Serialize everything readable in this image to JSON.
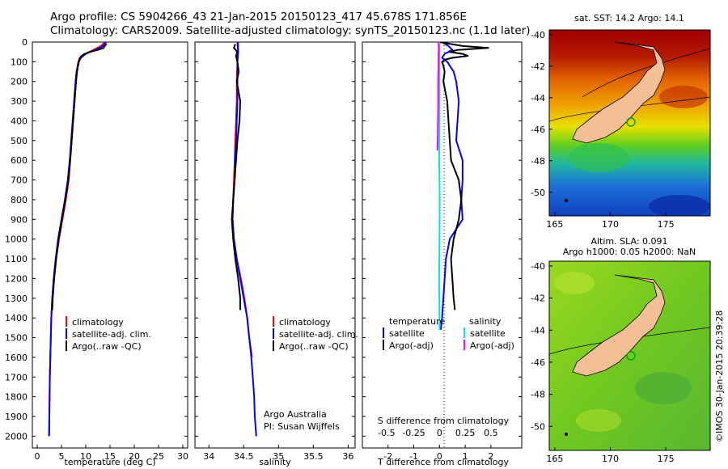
{
  "header": {
    "line1": "Argo profile: CS 5904266_43 21-Jan-2015 20150123_417 45.678S 171.856E",
    "line2": "Climatology: CARS2009. Satellite-adjusted climatology: synTS_20150123.nc (1.1d later)"
  },
  "colors": {
    "climatology": "#ff0000",
    "satellite": "#0000ff",
    "argo": "#000000",
    "sat_salinity": "#00e5ee",
    "argo_salinity": "#ff00ff",
    "land": "#f4be96",
    "frame": "#000000"
  },
  "chart_data": [
    {
      "type": "line",
      "name": "temperature-profile",
      "xlabel": "temperature (deg C)",
      "ylabel": "",
      "xlim": [
        -1,
        31
      ],
      "ylim": [
        2060,
        0
      ],
      "xticks": [
        "0",
        "5",
        "10",
        "15",
        "20",
        "25",
        "30"
      ],
      "yticks": [
        "0",
        "100",
        "200",
        "300",
        "400",
        "500",
        "600",
        "700",
        "800",
        "900",
        "1000",
        "1100",
        "1200",
        "1300",
        "1400",
        "1500",
        "1600",
        "1700",
        "1800",
        "1900",
        "2000"
      ],
      "legend": [
        "climatology",
        "satellite-adj. clim.",
        "Argo(..raw -QC)"
      ],
      "series": [
        {
          "name": "climatology",
          "depth": [
            0,
            20,
            40,
            60,
            80,
            100,
            150,
            200,
            300,
            400,
            500,
            600,
            700,
            800,
            900,
            1000,
            1100,
            1200,
            1300,
            1400,
            1500,
            1600,
            1700,
            1800,
            1900,
            2000
          ],
          "values": [
            14.0,
            13.1,
            11.6,
            9.9,
            9.0,
            8.6,
            8.2,
            8.0,
            7.7,
            7.4,
            7.1,
            6.8,
            6.5,
            5.9,
            5.2,
            4.5,
            3.9,
            3.4,
            3.1,
            2.9,
            2.8,
            2.7,
            2.6,
            2.55,
            2.5,
            2.45
          ]
        },
        {
          "name": "satellite-adj. clim.",
          "depth": [
            0,
            20,
            40,
            60,
            80,
            100,
            150,
            200,
            300,
            400,
            500,
            600,
            700,
            800,
            900,
            1000,
            1100,
            1200,
            1300,
            1400,
            1500,
            1600,
            1700,
            1800,
            1900,
            2000
          ],
          "values": [
            14.2,
            13.6,
            12.0,
            10.0,
            9.0,
            8.5,
            8.1,
            7.9,
            7.6,
            7.3,
            7.0,
            6.7,
            6.3,
            5.7,
            5.0,
            4.3,
            3.8,
            3.4,
            3.1,
            2.9,
            2.8,
            2.7,
            2.6,
            2.55,
            2.5,
            2.45
          ]
        },
        {
          "name": "Argo(..raw -QC)",
          "depth": [
            10,
            20,
            30,
            40,
            50,
            60,
            70,
            80,
            100,
            150,
            200,
            300,
            400,
            500,
            600,
            700,
            800,
            900,
            1000,
            1100,
            1200,
            1300,
            1360
          ],
          "values": [
            14.3,
            13.9,
            13.7,
            12.5,
            10.8,
            9.8,
            9.1,
            8.8,
            8.5,
            8.2,
            8.0,
            7.7,
            7.4,
            7.1,
            6.8,
            6.4,
            5.8,
            5.1,
            4.4,
            3.9,
            3.5,
            3.2,
            3.1
          ]
        }
      ]
    },
    {
      "type": "line",
      "name": "salinity-profile",
      "xlabel": "salinity",
      "xlim": [
        33.8,
        36.1
      ],
      "ylim": [
        2060,
        0
      ],
      "xticks": [
        "34",
        "34.5",
        "35",
        "35.5",
        "36"
      ],
      "legend": [
        "climatology",
        "satellite-adj. clim.",
        "Argo(..raw -QC)"
      ],
      "annotation": [
        "Argo Australia",
        "PI: Susan Wijffels"
      ],
      "series": [
        {
          "name": "climatology",
          "depth": [
            0,
            50,
            100,
            200,
            300,
            400,
            500,
            600,
            700,
            800,
            900,
            1000,
            1100,
            1200,
            1300,
            1400,
            1500,
            1600
          ],
          "values": [
            34.42,
            34.42,
            34.41,
            34.4,
            34.4,
            34.39,
            34.38,
            34.37,
            34.36,
            34.35,
            34.34,
            34.36,
            34.4,
            34.46,
            34.51,
            34.55,
            34.58,
            34.62
          ]
        },
        {
          "name": "satellite-adj. clim.",
          "depth": [
            0,
            50,
            100,
            200,
            300,
            400,
            500,
            600,
            700,
            800,
            900,
            1000,
            1100,
            1200,
            1300,
            1400,
            1500,
            1600,
            1700,
            1800,
            1900,
            2000
          ],
          "values": [
            34.41,
            34.42,
            34.41,
            34.41,
            34.41,
            34.4,
            34.39,
            34.38,
            34.37,
            34.35,
            34.34,
            34.36,
            34.4,
            34.45,
            34.5,
            34.55,
            34.58,
            34.61,
            34.63,
            34.65,
            34.66,
            34.68
          ]
        },
        {
          "name": "Argo(..raw -QC)",
          "depth": [
            10,
            30,
            50,
            70,
            100,
            150,
            200,
            300,
            400,
            500,
            600,
            700,
            800,
            900,
            1000,
            1100,
            1200,
            1300,
            1360
          ],
          "values": [
            34.38,
            34.36,
            34.41,
            34.39,
            34.41,
            34.43,
            34.4,
            34.45,
            34.44,
            34.41,
            34.39,
            34.37,
            34.35,
            34.33,
            34.35,
            34.38,
            34.42,
            34.45,
            34.45
          ]
        }
      ]
    },
    {
      "type": "line",
      "name": "difference-profile",
      "xlabel": "T difference from climatology",
      "x2label": "S difference from climatology",
      "xlim": [
        -3,
        3.2
      ],
      "ylim": [
        2060,
        0
      ],
      "xticks": [
        "-2",
        "-1",
        "0",
        "1",
        "2"
      ],
      "x2ticks": [
        "-0.5",
        "-0.25",
        "0",
        "0.25",
        "0.5"
      ],
      "legend_temperature_title": "temperature",
      "legend_salinity_title": "salinity",
      "legend_temperature": [
        "satellite",
        "Argo(-adj)"
      ],
      "legend_salinity": [
        "satellite",
        "Argo(-adj)"
      ],
      "series": [
        {
          "name": "temperature satellite",
          "depth": [
            0,
            20,
            40,
            60,
            80,
            100,
            150,
            200,
            300,
            400,
            500,
            600,
            700,
            800,
            900,
            1000,
            1100,
            1200,
            1300,
            1400,
            1460
          ],
          "values": [
            0.1,
            0.35,
            0.5,
            0.2,
            0.1,
            0.3,
            0.55,
            0.65,
            0.75,
            0.7,
            0.65,
            0.9,
            0.9,
            0.85,
            0.9,
            0.4,
            0.25,
            0.2,
            0.15,
            0.1,
            0.05
          ]
        },
        {
          "name": "temperature Argo(-adj)",
          "depth": [
            0,
            20,
            30,
            40,
            50,
            60,
            70,
            80,
            90,
            100,
            120,
            150,
            200,
            300,
            400,
            500,
            600,
            700,
            800,
            900,
            1000,
            1100,
            1200,
            1300,
            1360
          ],
          "values": [
            0.0,
            0.9,
            1.9,
            0.7,
            0.4,
            0.9,
            1.1,
            0.5,
            0.2,
            0.1,
            0.15,
            0.2,
            0.15,
            0.3,
            0.35,
            0.4,
            0.45,
            0.75,
            0.85,
            0.75,
            0.55,
            0.45,
            0.5,
            0.55,
            0.6
          ]
        },
        {
          "name": "salinity satellite",
          "depth": [
            0,
            100,
            200,
            400,
            600,
            800,
            1000,
            1200,
            1400,
            1460
          ],
          "values": [
            -0.01,
            0.0,
            0.0,
            0.0,
            -0.01,
            0.01,
            0.0,
            -0.01,
            0.0,
            0.0
          ]
        },
        {
          "name": "salinity Argo(-adj)",
          "depth": [
            0,
            30,
            60,
            100,
            200,
            300,
            400,
            500,
            550
          ],
          "values": [
            -0.04,
            -0.03,
            -0.04,
            -0.04,
            -0.05,
            -0.05,
            -0.06,
            -0.07,
            -0.08
          ]
        }
      ]
    },
    {
      "type": "heatmap",
      "name": "sst-map",
      "title": "sat. SST: 14.2  Argo: 14.1",
      "xlim": [
        164.5,
        179
      ],
      "ylim": [
        -51.5,
        -39.7
      ],
      "xticks": [
        "165",
        "170",
        "175"
      ],
      "yticks": [
        "-40",
        "-42",
        "-44",
        "-46",
        "-48",
        "-50"
      ],
      "float_position": [
        171.856,
        -45.678
      ]
    },
    {
      "type": "heatmap",
      "name": "sla-map",
      "title_line1": "Altim. SLA: 0.091",
      "title_line2": "Argo h1000: 0.05 h2000: NaN",
      "xlim": [
        164.5,
        179
      ],
      "ylim": [
        -51.5,
        -39.7
      ],
      "xticks": [
        "165",
        "170",
        "175"
      ],
      "yticks": [
        "-40",
        "-42",
        "-44",
        "-46",
        "-48",
        "-50"
      ],
      "float_position": [
        171.856,
        -45.678
      ]
    }
  ],
  "footer": {
    "credit": "©IMOS 30-Jan-2015 20:39:28"
  }
}
